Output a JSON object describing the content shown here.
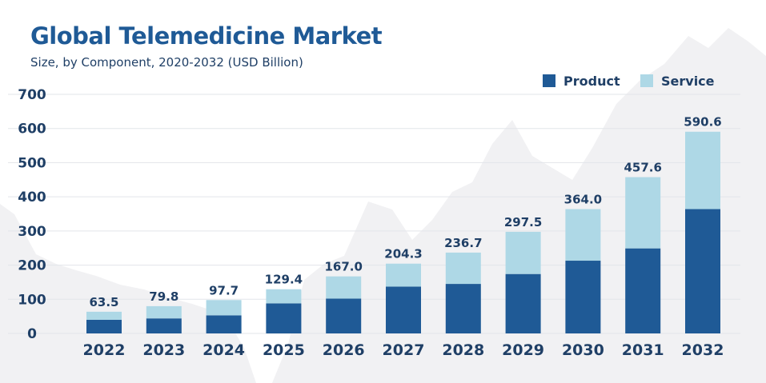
{
  "chart_data": {
    "type": "bar",
    "stacked": true,
    "title": "Global Telemedicine  Market",
    "subtitle": "Size, by Component, 2020-2032 (USD Billion)",
    "categories": [
      "2022",
      "2023",
      "2024",
      "2025",
      "2026",
      "2027",
      "2028",
      "2029",
      "2030",
      "2031",
      "2032"
    ],
    "series": [
      {
        "name": "Product",
        "color": "#1f5a96",
        "values": [
          40,
          44,
          53,
          88,
          102,
          137,
          145,
          174,
          213,
          249,
          364
        ]
      },
      {
        "name": "Service",
        "color": "#aed8e6",
        "values": [
          23.5,
          35.8,
          44.7,
          41.4,
          65.0,
          67.3,
          91.7,
          123.5,
          151.0,
          208.6,
          226.6
        ]
      }
    ],
    "totals": [
      "63.5",
      "79.8",
      "97.7",
      "129.4",
      "167.0",
      "204.3",
      "236.7",
      "297.5",
      "364.0",
      "457.6",
      "590.6"
    ],
    "yticks": [
      "0",
      "100",
      "200",
      "300",
      "400",
      "500",
      "600",
      "700"
    ],
    "ylim": [
      0,
      700
    ],
    "grid": true,
    "legend_position": "top-right",
    "xlabel": "",
    "ylabel": ""
  }
}
